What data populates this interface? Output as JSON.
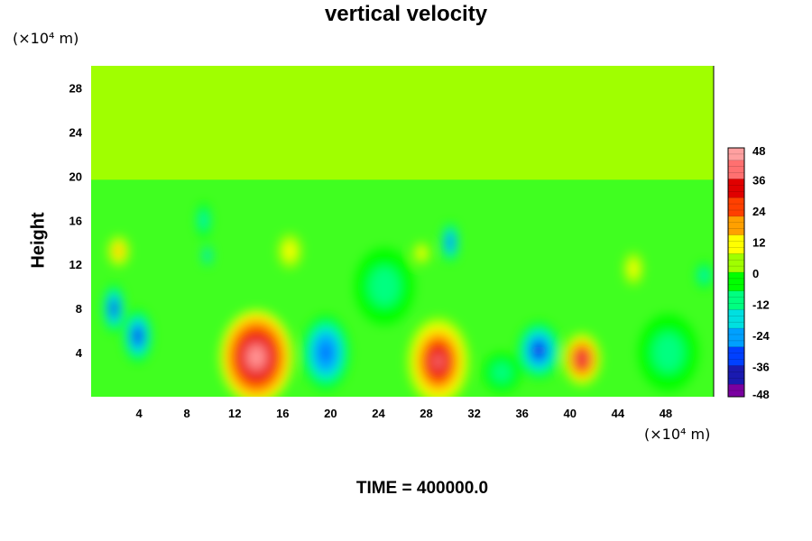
{
  "chart_data": {
    "type": "heatmap",
    "title": "vertical velocity",
    "ylabel": "Height",
    "x_unit": "(×10⁴ m)",
    "y_unit": "(×10⁴ m)",
    "footer": "TIME = 400000.0",
    "xlim": [
      0,
      52
    ],
    "ylim": [
      0,
      30
    ],
    "x_ticks": [
      "4",
      "8",
      "12",
      "16",
      "20",
      "24",
      "28",
      "32",
      "36",
      "40",
      "44",
      "48"
    ],
    "y_ticks": [
      "4",
      "8",
      "12",
      "16",
      "20",
      "24",
      "28"
    ],
    "colorbar": {
      "range": [
        -48,
        48
      ],
      "ticks": [
        "48",
        "36",
        "24",
        "12",
        "0",
        "-12",
        "-24",
        "-36",
        "-48"
      ],
      "colormap": [
        "#7a00a0",
        "#1a1ab0",
        "#0040ff",
        "#00a0ff",
        "#00e0e0",
        "#00ff80",
        "#00ff00",
        "#a0ff00",
        "#ffff00",
        "#ffa000",
        "#ff4000",
        "#e00000",
        "#ff7070",
        "#ffa0a0"
      ]
    },
    "features": [
      {
        "kind": "updraft",
        "x": 13.8,
        "y": 3.6,
        "value": 45,
        "rx": 3.0,
        "ry": 4.2
      },
      {
        "kind": "updraft",
        "x": 29.0,
        "y": 3.2,
        "value": 44,
        "rx": 2.6,
        "ry": 4.0
      },
      {
        "kind": "updraft",
        "x": 41.0,
        "y": 3.4,
        "value": 40,
        "rx": 1.6,
        "ry": 2.4
      },
      {
        "kind": "updraft",
        "x": 2.3,
        "y": 13.2,
        "value": 22,
        "rx": 0.9,
        "ry": 1.4
      },
      {
        "kind": "updraft",
        "x": 45.3,
        "y": 11.6,
        "value": 14,
        "rx": 0.8,
        "ry": 1.5
      },
      {
        "kind": "updraft",
        "x": 16.6,
        "y": 13.2,
        "value": 12,
        "rx": 1.0,
        "ry": 1.6
      },
      {
        "kind": "updraft",
        "x": 27.6,
        "y": 13.0,
        "value": 12,
        "rx": 0.7,
        "ry": 1.0
      },
      {
        "kind": "downdraft",
        "x": 1.9,
        "y": 8.0,
        "value": -40,
        "rx": 0.9,
        "ry": 2.2
      },
      {
        "kind": "downdraft",
        "x": 3.9,
        "y": 5.5,
        "value": -38,
        "rx": 1.2,
        "ry": 2.4
      },
      {
        "kind": "downdraft",
        "x": 19.6,
        "y": 4.0,
        "value": -34,
        "rx": 2.0,
        "ry": 3.4
      },
      {
        "kind": "downdraft",
        "x": 37.4,
        "y": 4.2,
        "value": -38,
        "rx": 1.8,
        "ry": 2.6
      },
      {
        "kind": "downdraft",
        "x": 30.0,
        "y": 14.0,
        "value": -34,
        "rx": 0.7,
        "ry": 1.8
      },
      {
        "kind": "downdraft",
        "x": 9.4,
        "y": 16.0,
        "value": -20,
        "rx": 0.6,
        "ry": 1.6
      },
      {
        "kind": "downdraft",
        "x": 9.7,
        "y": 12.8,
        "value": -24,
        "rx": 0.4,
        "ry": 1.0
      },
      {
        "kind": "downdraft",
        "x": 51.2,
        "y": 11.0,
        "value": -18,
        "rx": 0.7,
        "ry": 1.2
      },
      {
        "kind": "downdraft",
        "x": 24.5,
        "y": 10.0,
        "value": -12,
        "rx": 2.5,
        "ry": 3.5
      },
      {
        "kind": "downdraft",
        "x": 48.2,
        "y": 4.0,
        "value": -12,
        "rx": 2.5,
        "ry": 3.5
      },
      {
        "kind": "downdraft",
        "x": 34.3,
        "y": 2.2,
        "value": -14,
        "rx": 1.6,
        "ry": 1.8
      }
    ],
    "top_region": {
      "y_from": 20,
      "y_to": 30,
      "value": 0
    }
  }
}
